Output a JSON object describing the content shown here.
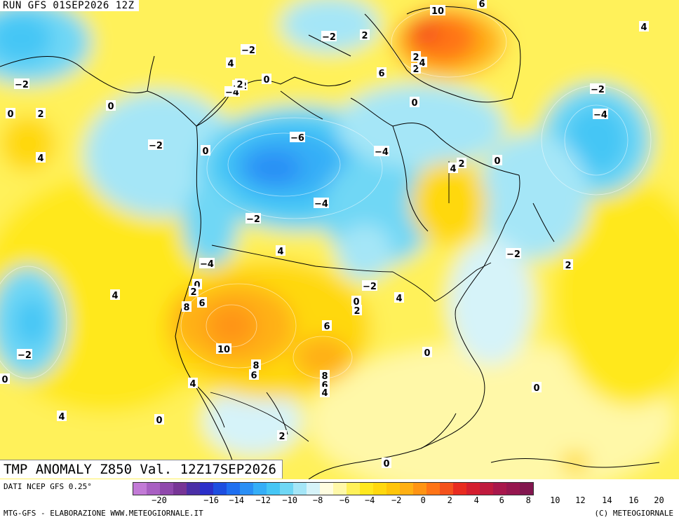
{
  "run_title": "RUN GFS 01SEP2026 12Z",
  "field_title": "TMP ANOMALY Z850 Val. 12Z17SEP2026",
  "data_source": "DATI NCEP GFS 0.25°",
  "credit": "MTG-GFS - ELABORAZIONE WWW.METEOGIORNALE.IT",
  "copyright": "(C) METEOGIORNALE",
  "legend": {
    "colors": [
      "#c27ad6",
      "#a85fc2",
      "#8f48ac",
      "#773596",
      "#4b2fa6",
      "#2b2fc9",
      "#1d4ee0",
      "#1f6ff0",
      "#2a8ff5",
      "#35aef7",
      "#45c6f5",
      "#6fd7f5",
      "#a5e6f7",
      "#d6f3f9",
      "#fffde0",
      "#fff8a8",
      "#fff15a",
      "#ffe81f",
      "#ffd80f",
      "#ffc50a",
      "#ffb014",
      "#ff9414",
      "#ff7417",
      "#f4511d",
      "#e82b20",
      "#d41e2f",
      "#bf1a3e",
      "#a8174c",
      "#96164f",
      "#82164f"
    ],
    "ticks": [
      "−20",
      "−16",
      "−14",
      "−12",
      "−10",
      "−8",
      "−6",
      "−4",
      "−2",
      "0",
      "2",
      "4",
      "6",
      "8",
      "10",
      "12",
      "14",
      "16",
      "20"
    ]
  },
  "contour_labels": [
    {
      "text": "10"
    },
    {
      "text": "6"
    },
    {
      "text": "4"
    },
    {
      "text": "−2"
    },
    {
      "text": "2"
    },
    {
      "text": "−2"
    },
    {
      "text": "6"
    },
    {
      "text": "2"
    },
    {
      "text": "4"
    },
    {
      "text": "2"
    },
    {
      "text": "0"
    },
    {
      "text": "−4"
    },
    {
      "text": "−2"
    },
    {
      "text": "0"
    },
    {
      "text": "−2"
    },
    {
      "text": "2"
    },
    {
      "text": "0"
    },
    {
      "text": "0"
    },
    {
      "text": "−2"
    },
    {
      "text": "−4"
    },
    {
      "text": "4"
    },
    {
      "text": "−2"
    },
    {
      "text": "0"
    },
    {
      "text": "−6"
    },
    {
      "text": "−4"
    },
    {
      "text": "4"
    },
    {
      "text": "2"
    },
    {
      "text": "0"
    },
    {
      "text": "−4"
    },
    {
      "text": "−2"
    },
    {
      "text": "4"
    },
    {
      "text": "−4"
    },
    {
      "text": "−2"
    },
    {
      "text": "2"
    },
    {
      "text": "4"
    },
    {
      "text": "4"
    },
    {
      "text": "0"
    },
    {
      "text": "2"
    },
    {
      "text": "6"
    },
    {
      "text": "8"
    },
    {
      "text": "−2"
    },
    {
      "text": "0"
    },
    {
      "text": "2"
    },
    {
      "text": "4"
    },
    {
      "text": "10"
    },
    {
      "text": "6"
    },
    {
      "text": "8"
    },
    {
      "text": "6"
    },
    {
      "text": "8"
    },
    {
      "text": "6"
    },
    {
      "text": "4"
    },
    {
      "text": "0"
    },
    {
      "text": "−2"
    },
    {
      "text": "0"
    },
    {
      "text": "4"
    },
    {
      "text": "0"
    },
    {
      "text": "4"
    },
    {
      "text": "2"
    },
    {
      "text": "0"
    },
    {
      "text": "0"
    },
    {
      "text": "2"
    }
  ]
}
